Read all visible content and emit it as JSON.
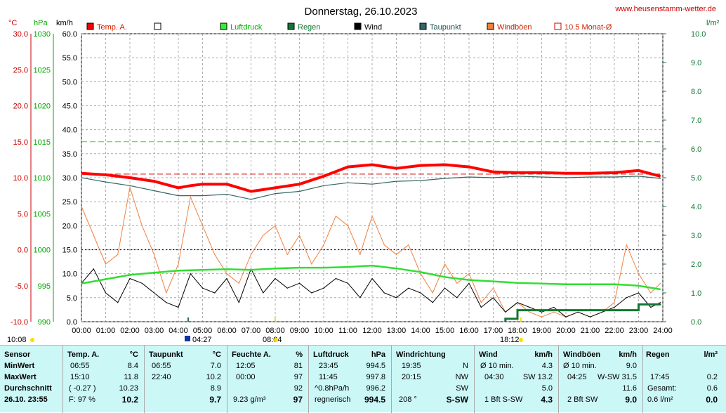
{
  "title": "Donnerstag, 26.10.2023",
  "website": "www.heusenstamm-wetter.de",
  "colors": {
    "temp": "#ff0000",
    "pressure": "#33dd33",
    "rain": "#117733",
    "wind": "#000000",
    "dew": "#336666",
    "gust": "#f08040",
    "blue": "#0000cc"
  },
  "axes": {
    "left_units": [
      "°C",
      "hPa",
      "km/h"
    ],
    "right_unit": "l/m²",
    "temp_ticks": [
      "30.0",
      "25.0",
      "20.0",
      "15.0",
      "10.0",
      "5.0",
      "0.0",
      "-5.0",
      "-10.0"
    ],
    "hpa_ticks": [
      "1030",
      "1025",
      "1020",
      "1015",
      "1010",
      "1005",
      "1000",
      "995",
      "990"
    ],
    "kmh_ticks": [
      "60.0",
      "55.0",
      "50.0",
      "45.0",
      "40.0",
      "35.0",
      "30.0",
      "25.0",
      "20.0",
      "15.0",
      "10.0",
      "5.0",
      "0.0"
    ],
    "rain_ticks": [
      "10.0",
      "9.0",
      "8.0",
      "7.0",
      "6.0",
      "5.0",
      "4.0",
      "3.0",
      "2.0",
      "1.0",
      "0.0"
    ],
    "x_ticks": [
      "00:00",
      "01:00",
      "02:00",
      "03:00",
      "04:00",
      "05:00",
      "06:00",
      "07:00",
      "08:00",
      "09:00",
      "10:00",
      "11:00",
      "12:00",
      "13:00",
      "14:00",
      "15:00",
      "16:00",
      "17:00",
      "18:00",
      "19:00",
      "20:00",
      "21:00",
      "22:00",
      "23:00",
      "24:00"
    ]
  },
  "markers": {
    "sunrise": "10:08",
    "moon": "04:27",
    "rise": "08:04",
    "set": "18:12"
  },
  "legend": [
    "Temp. A.",
    "",
    "Luftdruck",
    "Regen",
    "Wind",
    "Taupunkt",
    "Windböen",
    "10.5 Monat-Ø"
  ],
  "chart_data": {
    "type": "line",
    "title": "Donnerstag, 26.10.2023",
    "x_unit": "hours",
    "xlim": [
      0,
      24
    ],
    "temp_ylim": [
      -10,
      30
    ],
    "wind_ylim": [
      0,
      60
    ],
    "rain_ylim": [
      0,
      10
    ],
    "reference_lines": {
      "monthly_avg_temp": 10.5,
      "pressure_green_dashed": 1015,
      "zero_temp_blue_dotted": 0
    },
    "series": [
      {
        "name": "Temp. A.",
        "axis": "temp",
        "x": [
          0,
          1,
          2,
          3,
          4,
          4.5,
          5,
          6,
          7,
          8,
          9,
          10,
          11,
          12,
          13,
          14,
          15,
          16,
          17,
          18,
          19,
          20,
          21,
          22,
          23,
          23.9
        ],
        "y": [
          10.6,
          10.4,
          10.0,
          9.5,
          8.6,
          8.9,
          9.1,
          9.1,
          8.1,
          8.6,
          9.1,
          10.2,
          11.5,
          11.8,
          11.3,
          11.7,
          11.8,
          11.5,
          10.8,
          10.7,
          10.7,
          10.6,
          10.6,
          10.7,
          11.0,
          10.2
        ]
      },
      {
        "name": "Taupunkt",
        "axis": "temp",
        "x": [
          0,
          1,
          2,
          3,
          4,
          5,
          6,
          7,
          8,
          9,
          10,
          11,
          12,
          13,
          14,
          15,
          16,
          17,
          18,
          19,
          20,
          21,
          22,
          23,
          23.9
        ],
        "y": [
          10.0,
          9.4,
          8.9,
          8.2,
          7.5,
          7.5,
          7.7,
          7.0,
          7.8,
          8.1,
          8.9,
          9.3,
          9.1,
          9.5,
          9.6,
          9.9,
          10.1,
          10.0,
          10.2,
          10.1,
          10.0,
          10.1,
          10.1,
          10.2,
          9.9
        ]
      },
      {
        "name": "Luftdruck",
        "axis": "hpa",
        "x": [
          0,
          1,
          2,
          3,
          4,
          5,
          6,
          7,
          8,
          9,
          10,
          11,
          12,
          13,
          14,
          15,
          16,
          17,
          18,
          19,
          20,
          21,
          22,
          23,
          23.9
        ],
        "y": [
          995.3,
          995.9,
          996.5,
          996.8,
          997.1,
          997.2,
          997.3,
          997.2,
          997.4,
          997.5,
          997.5,
          997.6,
          997.8,
          997.4,
          996.9,
          996.2,
          995.8,
          995.6,
          995.4,
          995.3,
          995.2,
          995.2,
          995.2,
          995.0,
          994.5
        ]
      },
      {
        "name": "Wind",
        "axis": "kmh",
        "x": [
          0,
          0.5,
          1,
          1.5,
          2,
          2.5,
          3,
          3.5,
          4,
          4.5,
          5,
          5.5,
          6,
          6.5,
          7,
          7.5,
          8,
          8.5,
          9,
          9.5,
          10,
          10.5,
          11,
          11.5,
          12,
          12.5,
          13,
          13.5,
          14,
          14.5,
          15,
          15.5,
          16,
          16.5,
          17,
          17.5,
          18,
          18.5,
          19,
          19.5,
          20,
          20.5,
          21,
          21.5,
          22,
          22.5,
          23,
          23.5,
          23.9
        ],
        "y": [
          8,
          11,
          6,
          4,
          9,
          8,
          6,
          4,
          3,
          10,
          7,
          6,
          9,
          4,
          11,
          6,
          9,
          7,
          8,
          6,
          7,
          9,
          8,
          5,
          9,
          6,
          5,
          7,
          6,
          4,
          7,
          5,
          8,
          3,
          5,
          2,
          4,
          3,
          2,
          3,
          1,
          2,
          1,
          2,
          3,
          5,
          6,
          3,
          4
        ]
      },
      {
        "name": "Windböen",
        "axis": "kmh",
        "x": [
          0,
          0.5,
          1,
          1.5,
          2,
          2.5,
          3,
          3.5,
          4,
          4.5,
          5,
          5.5,
          6,
          6.5,
          7,
          7.5,
          8,
          8.5,
          9,
          9.5,
          10,
          10.5,
          11,
          11.5,
          12,
          12.5,
          13,
          13.5,
          14,
          14.5,
          15,
          15.5,
          16,
          16.5,
          17,
          17.5,
          18,
          18.5,
          19,
          19.5,
          20,
          20.5,
          21,
          21.5,
          22,
          22.5,
          23,
          23.5,
          23.9
        ],
        "y": [
          24,
          18,
          12,
          14,
          28,
          20,
          14,
          6,
          12,
          26,
          20,
          14,
          10,
          8,
          14,
          18,
          20,
          14,
          18,
          12,
          16,
          22,
          20,
          14,
          22,
          16,
          14,
          16,
          10,
          6,
          12,
          8,
          10,
          4,
          7,
          2,
          4,
          2,
          1,
          2,
          1,
          2,
          1,
          2,
          4,
          16,
          10,
          6,
          8
        ]
      }
    ],
    "rain_bars": {
      "x": [
        17.5,
        18,
        19,
        20,
        21,
        22,
        23,
        23.9
      ],
      "y": [
        0.1,
        0.4,
        0.4,
        0.4,
        0.4,
        0.4,
        0.6,
        0.6
      ]
    }
  },
  "stats": {
    "sensor": {
      "header": "Sensor",
      "min": "MinWert",
      "max": "MaxWert",
      "avg": "Durchschnitt",
      "now": "26.10. 23:55"
    },
    "temp": {
      "header": "Temp. A.",
      "unit": "°C",
      "min_time": "06:55",
      "min": "8.4",
      "max_time": "15:10",
      "max": "11.8",
      "avg_note": "( -0.27 )",
      "avg": "10.23",
      "now_note": "F: 97 %",
      "now": "10.2"
    },
    "dew": {
      "header": "Taupunkt",
      "unit": "°C",
      "min_time": "06:55",
      "min": "7.0",
      "max_time": "22:40",
      "max": "10.2",
      "avg": "8.9",
      "now": "9.7"
    },
    "hum": {
      "header": "Feuchte A.",
      "unit": "%",
      "min_time": "12:05",
      "min": "81",
      "max_time": "00:00",
      "max": "97",
      "avg": "92",
      "now_note": "9.23 g/m³",
      "now": "97"
    },
    "press": {
      "header": "Luftdruck",
      "unit": "hPa",
      "min_time": "23:45",
      "min": "994.5",
      "max_time": "11:45",
      "max": "997.8",
      "avg_note": "^0.8hPa/h",
      "avg": "996.2",
      "now_note": "regnerisch",
      "now": "994.5"
    },
    "dir": {
      "header": "Windrichtung",
      "min_time": "19:35",
      "min": "N",
      "max_time": "20:15",
      "max": "NW",
      "avg": "SW",
      "now_note": "208 °",
      "now": "S-SW"
    },
    "wind": {
      "header": "Wind",
      "unit": "km/h",
      "min_note": "Ø 10 min.",
      "min": "4.3",
      "max_time": "04:30",
      "max_dir": "SW 13.2",
      "avg": "5.0",
      "now_note": "1 Bft S-SW",
      "now": "4.3"
    },
    "gust": {
      "header": "Windböen",
      "unit": "km/h",
      "min_note": "Ø 10 min.",
      "min": "9.0",
      "max_time": "04:25",
      "max_dir": "W-SW 31.5",
      "avg": "11.6",
      "now_note": "2 Bft SW",
      "now": "9.0"
    },
    "rain": {
      "header": "Regen",
      "unit": "l/m²",
      "max_time": "17:45",
      "max": "0.2",
      "avg_note": "Gesamt:",
      "avg": "0.6",
      "now_note": "0.6 l/m²",
      "now": "0.0"
    }
  }
}
